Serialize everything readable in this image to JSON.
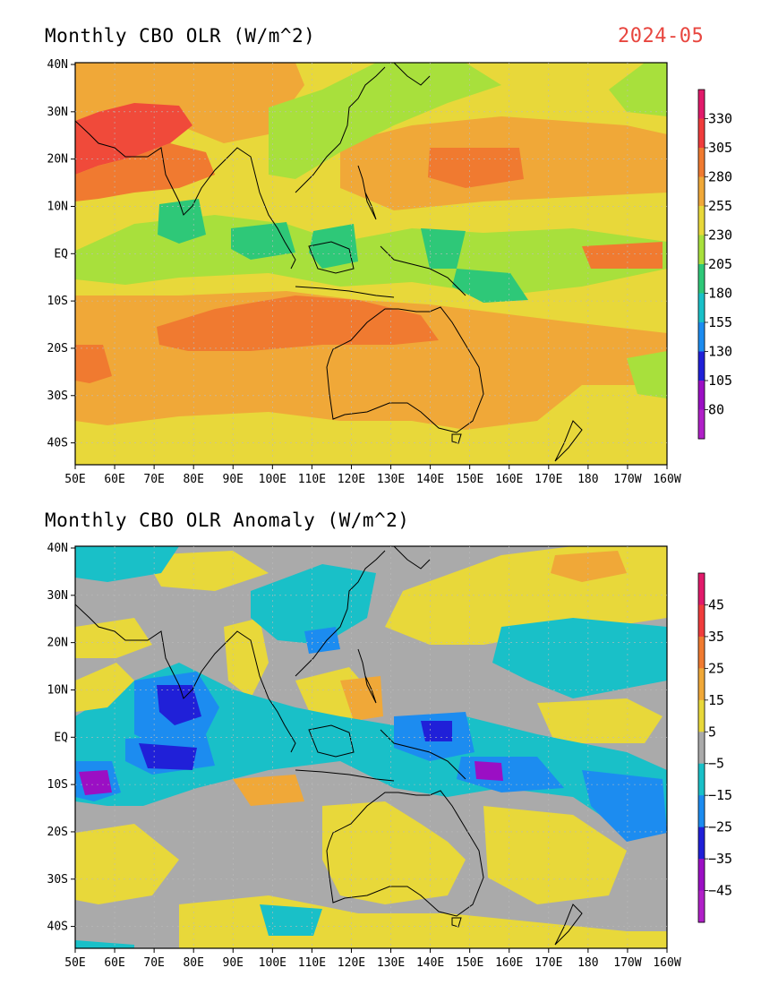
{
  "panel1": {
    "title": "Monthly CBO OLR (W/m^2)",
    "date": "2024-05",
    "colorbar": {
      "labels": [
        "330",
        "305",
        "280",
        "255",
        "230",
        "205",
        "180",
        "155",
        "130",
        "105",
        "80"
      ],
      "colors": [
        "#e11a6a",
        "#f03c3c",
        "#f07a30",
        "#f0a838",
        "#e8d83a",
        "#a8e03c",
        "#2ec878",
        "#19c0c8",
        "#1c8cf0",
        "#2020d8",
        "#9b0fc4",
        "#b020c8"
      ]
    },
    "y_ticks": [
      "40N",
      "30N",
      "20N",
      "10N",
      "EQ",
      "10S",
      "20S",
      "30S",
      "40S"
    ],
    "x_ticks": [
      "50E",
      "60E",
      "70E",
      "80E",
      "90E",
      "100E",
      "110E",
      "120E",
      "130E",
      "140E",
      "150E",
      "160E",
      "170E",
      "180",
      "170W",
      "160W"
    ],
    "field_colors": {
      "hot": "#f04a3a",
      "warm_orange": "#f07a30",
      "orange": "#f0a838",
      "yellow": "#e8d83a",
      "lime": "#a8e03c",
      "green": "#2ec878",
      "teal": "#19c0c8"
    }
  },
  "panel2": {
    "title": "Monthly CBO OLR Anomaly (W/m^2)",
    "colorbar": {
      "labels": [
        "45",
        "35",
        "25",
        "15",
        "5",
        "−5",
        "−15",
        "−25",
        "−35",
        "−45"
      ],
      "colors": [
        "#e11a6a",
        "#f03c3c",
        "#f07a30",
        "#f0a838",
        "#e8d83a",
        "#aaaaaa",
        "#19c0c8",
        "#1c8cf0",
        "#2020d8",
        "#9b0fc4",
        "#b020c8"
      ]
    },
    "y_ticks": [
      "40N",
      "30N",
      "20N",
      "10N",
      "EQ",
      "10S",
      "20S",
      "30S",
      "40S"
    ],
    "x_ticks": [
      "50E",
      "60E",
      "70E",
      "80E",
      "90E",
      "100E",
      "110E",
      "120E",
      "130E",
      "140E",
      "150E",
      "160E",
      "170E",
      "180",
      "170W",
      "160W"
    ],
    "field_colors": {
      "gray": "#aaaaaa",
      "yellow": "#e8d83a",
      "orange": "#f0a838",
      "teal": "#19c0c8",
      "blue": "#1c8cf0",
      "dblue": "#2020d8",
      "purple": "#9b0fc4"
    }
  }
}
